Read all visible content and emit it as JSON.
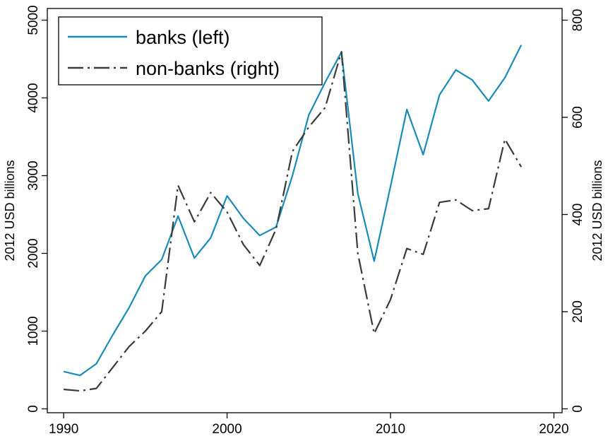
{
  "chart_data": {
    "type": "line",
    "title": "",
    "x": [
      1990,
      1991,
      1992,
      1993,
      1994,
      1995,
      1996,
      1997,
      1998,
      1999,
      2000,
      2001,
      2002,
      2003,
      2004,
      2005,
      2006,
      2007,
      2008,
      2009,
      2010,
      2011,
      2012,
      2013,
      2014,
      2015,
      2016,
      2017,
      2018
    ],
    "xlim": [
      1989,
      2020.5
    ],
    "xticks": [
      1990,
      2000,
      2010,
      2020
    ],
    "xtick_labels": [
      "1990",
      "2000",
      "2010",
      "2020"
    ],
    "xlabel": "",
    "left_axis": {
      "label": "2012 USD billions",
      "lim": [
        -50,
        5150
      ],
      "ticks": [
        0,
        1000,
        2000,
        3000,
        4000,
        5000
      ],
      "tick_labels": [
        "0",
        "1000",
        "2000",
        "3000",
        "4000",
        "5000"
      ]
    },
    "right_axis": {
      "label": "2012 USD billions",
      "lim": [
        -8,
        824
      ],
      "ticks": [
        0,
        200,
        400,
        600,
        800
      ],
      "tick_labels": [
        "0",
        "200",
        "400",
        "600",
        "800"
      ]
    },
    "grid": false,
    "legend_position": "top-left",
    "series": [
      {
        "name": "banks (left)",
        "axis": "left",
        "color": "#1a8bb8",
        "dash": "solid",
        "values": [
          480,
          430,
          580,
          950,
          1300,
          1710,
          1920,
          2480,
          1940,
          2200,
          2740,
          2450,
          2230,
          2340,
          3000,
          3780,
          4200,
          4590,
          2770,
          1900,
          2860,
          3850,
          3270,
          4040,
          4360,
          4230,
          3960,
          4260,
          4680
        ]
      },
      {
        "name": "non-banks (right)",
        "axis": "right",
        "color": "#3a3a3a",
        "dash": "dash-dot",
        "values": [
          40,
          37,
          42,
          85,
          128,
          160,
          200,
          460,
          385,
          445,
          405,
          338,
          295,
          370,
          530,
          580,
          620,
          735,
          320,
          155,
          225,
          330,
          318,
          425,
          430,
          408,
          412,
          555,
          498
        ]
      }
    ]
  }
}
